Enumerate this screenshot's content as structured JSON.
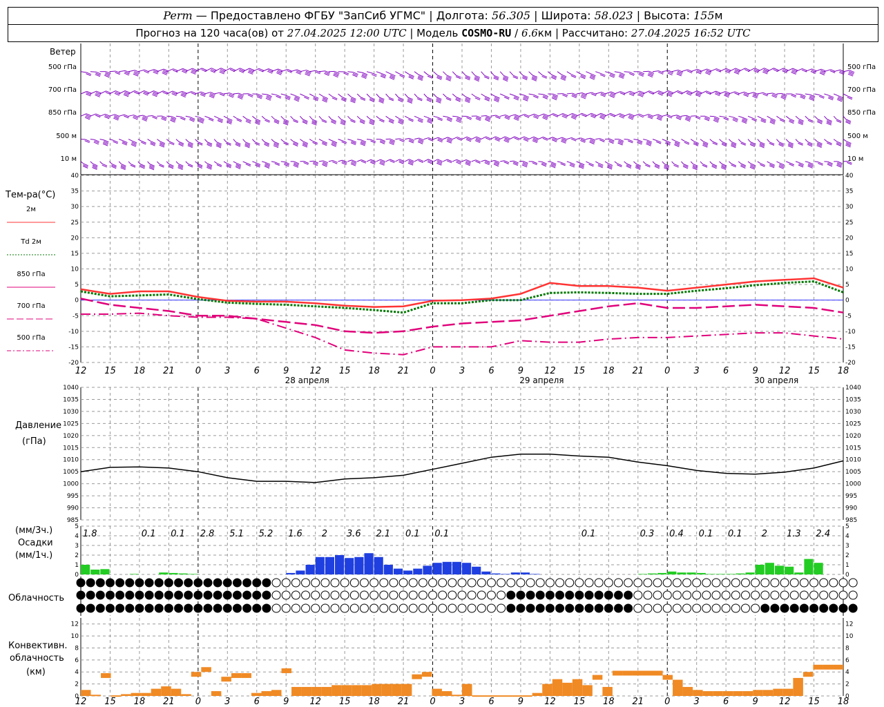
{
  "header": {
    "city": "Perm",
    "provided": "Предоставлено ФГБУ \"ЗапСиб УГМС\"",
    "lon_label": "Долгота:",
    "lon_value": "56.305",
    "lat_label": "Широта:",
    "lat_value": "58.023",
    "alt_label": "Высота:",
    "alt_value": "155",
    "alt_unit": "м",
    "forecast_text": "Прогноз на 120 часа(ов) от",
    "forecast_date": "27.04.2025 12:00 UTC",
    "model_label": "Модель",
    "model_name": "COSMO-RU",
    "model_res": "6.6",
    "model_res_unit": "км",
    "calc_label": "Рассчитано:",
    "calc_date": "27.04.2025 16:52 UTC"
  },
  "labels": {
    "wind_title": "Ветер",
    "wind_levels": [
      "500 гПа",
      "700 гПа",
      "850 гПа",
      "500 м",
      "10 м"
    ],
    "temp_title": "Тем-ра(°C)",
    "temp_legend": [
      "2м",
      "Td 2м",
      "850 гПа",
      "700 гПа",
      "500 гПа"
    ],
    "pressure_title": "Давление",
    "pressure_unit": "(гПа)",
    "precip_unit1": "(мм/3ч.)",
    "precip_title": "Осадки",
    "precip_unit2": "(мм/1ч.)",
    "cloud_title": "Облачность",
    "conv_title1": "Конвективн.",
    "conv_title2": "облачность",
    "conv_unit": "(км)",
    "dates": [
      "28 апреля",
      "29 апреля",
      "30 апреля"
    ]
  },
  "colors": {
    "t2m": "#ff3333",
    "td2m": "#007700",
    "t850": "#e0007a",
    "t700": "#e0007a",
    "t500": "#e0007a",
    "wind": "#8000c0",
    "pressure": "#000000",
    "precip_rain": "#1f3fe0",
    "precip_light": "#22cc22",
    "convective": "#f08a24",
    "grid": "#999999"
  },
  "chart_data": {
    "type": "meteogram",
    "x_ticks": [
      "12",
      "15",
      "18",
      "21",
      "0",
      "3",
      "6",
      "9",
      "12",
      "15",
      "18",
      "21",
      "0",
      "3",
      "6",
      "9",
      "12",
      "15",
      "18",
      "21",
      "0",
      "3",
      "6",
      "9",
      "12",
      "15",
      "18"
    ],
    "day_boundaries": [
      4,
      12,
      20
    ],
    "temperature": {
      "ylim": [
        -20,
        40
      ],
      "ticks": [
        -20,
        -15,
        -10,
        -5,
        0,
        5,
        10,
        15,
        20,
        25,
        30,
        35,
        40
      ],
      "t2m": [
        3.5,
        2.0,
        2.8,
        2.8,
        1.0,
        -0.2,
        -0.5,
        -0.5,
        -1.0,
        -1.8,
        -2.2,
        -2.0,
        -0.2,
        0.0,
        0.5,
        2.0,
        5.5,
        4.5,
        4.5,
        4.0,
        3.0,
        4.0,
        5.0,
        6.0,
        6.5,
        7.0,
        4.0
      ],
      "td2m": [
        2.8,
        1.2,
        1.5,
        1.8,
        0.3,
        -0.8,
        -1.2,
        -1.5,
        -2.0,
        -2.5,
        -3.2,
        -4.0,
        -1.0,
        -1.0,
        0.0,
        0.0,
        2.3,
        2.5,
        2.3,
        2.0,
        2.0,
        3.0,
        3.8,
        4.8,
        5.5,
        6.0,
        2.5
      ],
      "t850": [
        0.5,
        -1.5,
        -2.5,
        -3.5,
        -5.0,
        -5.0,
        -6.0,
        -7.0,
        -8.0,
        -10.0,
        -10.5,
        -10.0,
        -8.5,
        -7.5,
        -7.0,
        -6.5,
        -5.0,
        -3.5,
        -2.0,
        -1.0,
        -2.5,
        -2.5,
        -2.0,
        -1.5,
        -2.0,
        -2.5,
        -4.0
      ],
      "t700": [
        -4.5,
        -4.8,
        -4.2,
        -5.0,
        -5.5,
        -5.5,
        -6.0,
        -7.0,
        -8.0,
        -10.0,
        -10.5,
        -10.0,
        -8.0,
        -7.0,
        -7.0,
        -6.5,
        -5.5,
        -3.5,
        -2.0,
        -1.0,
        -2.5,
        -2.5,
        -2.0,
        -1.5,
        -2.0,
        -2.5,
        -4.0
      ],
      "t500": [
        -4.5,
        -4.5,
        -4.2,
        -5.0,
        -5.5,
        -5.5,
        -6.0,
        -9.0,
        -12.0,
        -16.0,
        -17.0,
        -17.5,
        -15.0,
        -15.0,
        -15.0,
        -13.0,
        -13.5,
        -13.5,
        -12.5,
        -12.0,
        -12.0,
        -11.5,
        -11.0,
        -10.5,
        -10.5,
        -11.5,
        -12.5
      ]
    },
    "pressure": {
      "ylim": [
        985,
        1040
      ],
      "ticks": [
        985,
        990,
        995,
        1000,
        1005,
        1010,
        1015,
        1020,
        1025,
        1030,
        1035,
        1040
      ],
      "values": [
        1005,
        1006.8,
        1007,
        1006.5,
        1005,
        1002.5,
        1001,
        1001,
        1000.5,
        1002,
        1002.5,
        1003.5,
        1006,
        1008.5,
        1011,
        1012.3,
        1012.3,
        1011.5,
        1011,
        1009,
        1007.5,
        1005.5,
        1004.3,
        1004,
        1004.8,
        1006.5,
        1009.5
      ]
    },
    "precip_3h_labels": [
      "1.8",
      "0.1",
      "0.1",
      "2.8",
      "5.1",
      "5.2",
      "1.6",
      "2",
      "3.6",
      "2.1",
      "0.1",
      "0.1",
      "0.1",
      "0.3",
      "0.4",
      "0.1",
      "0.1",
      "2",
      "1.3",
      "2.4"
    ],
    "precip_1h": {
      "ylim": [
        0,
        5
      ],
      "ticks": [
        0,
        1,
        2,
        3,
        4,
        5
      ],
      "rain": [
        0,
        0,
        0,
        0,
        0,
        0,
        0,
        0,
        0,
        0,
        0,
        0,
        0,
        0.15,
        0.4,
        1.0,
        1.8,
        1.8,
        2.0,
        1.7,
        1.8,
        2.2,
        1.8,
        1.0,
        0.6,
        0.4,
        0.6,
        0.9,
        1.2,
        1.3,
        1.3,
        1.2,
        0.8,
        0.3,
        0.1,
        0.05,
        0.2,
        0.2,
        0.05
      ],
      "light": [
        1.0,
        0.5,
        0.55,
        0.05,
        0.2,
        0.15,
        0.1,
        0.05
      ]
    },
    "cloudiness_rows": 3,
    "convective_cloud": {
      "ylim": [
        0,
        13
      ],
      "ticks": [
        0,
        2,
        4,
        6,
        8,
        10,
        12
      ],
      "top_km": [
        1.0,
        0.2,
        3.8,
        0.1,
        0.3,
        0.5,
        0.5,
        1.2,
        1.6,
        1.2,
        0.3,
        4.0,
        4.8,
        0.8,
        3.2,
        3.8,
        3.8,
        0.5,
        0.8,
        1.0,
        4.6,
        1.5,
        1.5,
        1.5,
        1.5,
        1.8,
        1.8,
        1.8,
        1.8,
        2.0,
        2.0,
        2.0,
        2.0,
        3.6,
        4.0,
        1.2,
        0.8,
        0.2,
        2.0,
        0.1,
        0.1,
        0.1,
        0.1,
        0.1,
        0.1,
        0.5,
        2.0,
        2.8,
        2.2,
        2.8,
        1.8,
        3.5,
        1.5,
        4.2,
        4.2,
        4.2,
        4.2,
        4.2,
        3.5,
        2.7,
        1.5,
        1.0,
        0.8,
        0.8,
        0.8,
        0.8,
        0.8,
        1.0,
        1.0,
        1.2,
        1.2,
        3.0,
        4.0,
        5.2,
        5.2,
        5.2
      ]
    }
  }
}
